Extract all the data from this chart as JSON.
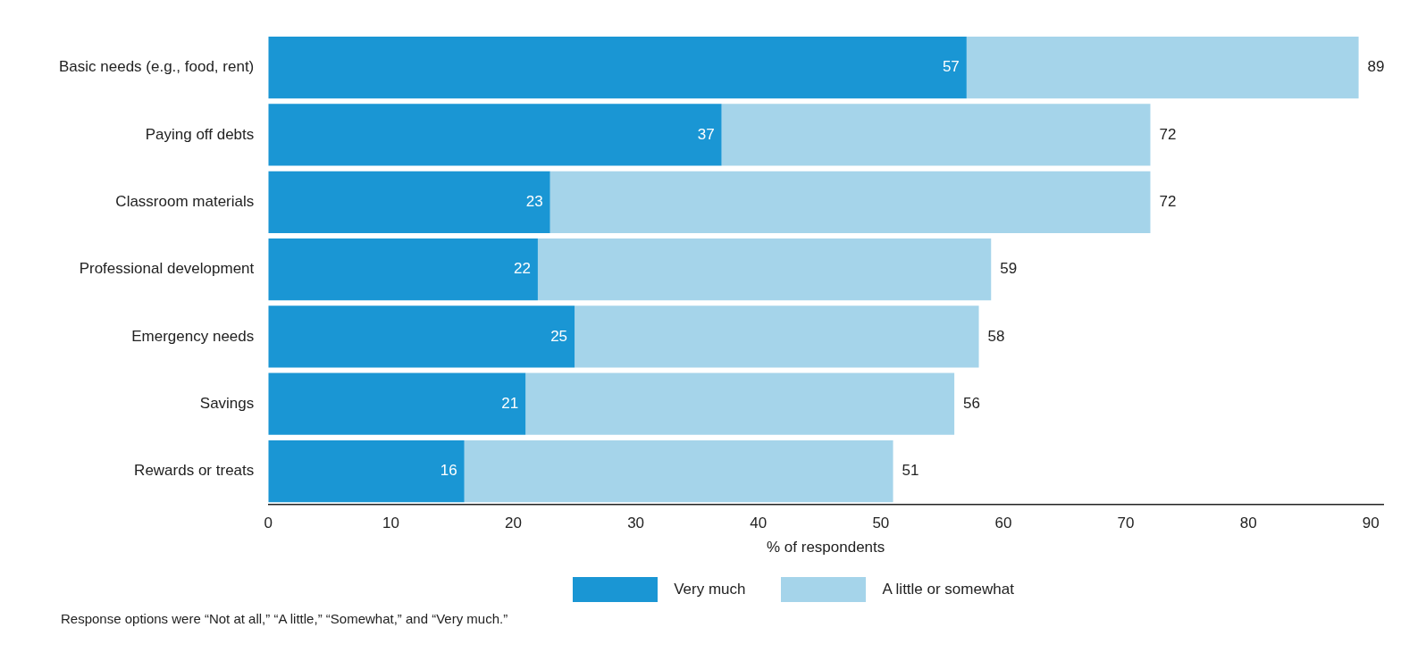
{
  "chart_data": {
    "type": "bar",
    "orientation": "horizontal",
    "stacked": true,
    "xlabel": "% of respondents",
    "categories": [
      "Basic needs (e.g., food, rent)",
      "Paying off debts",
      "Classroom materials",
      "Professional development",
      "Emergency needs",
      "Savings",
      "Rewards or treats"
    ],
    "series": [
      {
        "name": "Very much",
        "color": "#1a96d4",
        "values": [
          57,
          37,
          23,
          22,
          25,
          21,
          16
        ],
        "value_labels": [
          "57",
          "37",
          "23",
          "22",
          "25",
          "21",
          "16"
        ]
      },
      {
        "name": "A little or somewhat",
        "color": "#a5d4ea",
        "values": [
          32,
          35,
          49,
          37,
          33,
          35,
          35
        ]
      }
    ],
    "totals": [
      "89",
      "72",
      "72",
      "59",
      "58",
      "56",
      "51"
    ],
    "xlim": [
      0,
      91
    ],
    "xticks": [
      0,
      10,
      20,
      30,
      40,
      50,
      60,
      70,
      80,
      90
    ],
    "grid": false,
    "legend": "bottom",
    "annotations": [
      "Response options were “Not at all,” “A little,” “Somewhat,” and “Very much.”"
    ]
  }
}
